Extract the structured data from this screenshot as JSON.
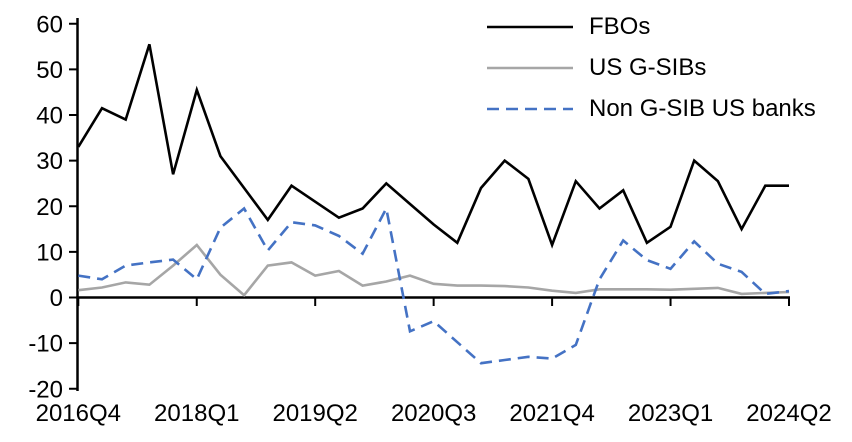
{
  "chart_data": {
    "type": "line",
    "title": "",
    "xlabel": "",
    "ylabel": "",
    "grid": false,
    "legend_position": "top-right",
    "ylim": [
      -20,
      60
    ],
    "y_ticks": [
      60,
      50,
      40,
      30,
      20,
      10,
      0,
      -10,
      -20
    ],
    "x_tick_labels": [
      "2016Q4",
      "2018Q1",
      "2019Q2",
      "2020Q3",
      "2021Q4",
      "2023Q1",
      "2024Q2"
    ],
    "x_tick_indices": [
      0,
      5,
      10,
      15,
      20,
      25,
      30
    ],
    "categories": [
      "2016Q4",
      "2017Q1",
      "2017Q2",
      "2017Q3",
      "2017Q4",
      "2018Q1",
      "2018Q2",
      "2018Q3",
      "2018Q4",
      "2019Q1",
      "2019Q2",
      "2019Q3",
      "2019Q4",
      "2020Q1",
      "2020Q2",
      "2020Q3",
      "2020Q4",
      "2021Q1",
      "2021Q2",
      "2021Q3",
      "2021Q4",
      "2022Q1",
      "2022Q2",
      "2022Q3",
      "2022Q4",
      "2023Q1",
      "2023Q2",
      "2023Q3",
      "2023Q4",
      "2024Q1",
      "2024Q2"
    ],
    "series": [
      {
        "name": "FBOs",
        "color": "#000000",
        "style": "solid",
        "values": [
          33,
          41.5,
          39,
          55.5,
          27,
          45.5,
          31,
          24,
          17,
          24.5,
          21,
          17.5,
          19.5,
          25,
          20.5,
          16,
          12,
          24,
          30,
          26,
          11.5,
          25.5,
          19.5,
          23.5,
          12,
          15.5,
          30,
          25.5,
          15,
          24.5,
          24.5
        ]
      },
      {
        "name": "US G-SIBs",
        "color": "#A6A6A6",
        "style": "solid",
        "values": [
          1.6,
          2.2,
          3.3,
          2.8,
          7,
          11.5,
          5,
          0.5,
          7,
          7.7,
          4.8,
          5.8,
          2.6,
          3.5,
          4.8,
          3,
          2.6,
          2.6,
          2.5,
          2.2,
          1.5,
          1,
          1.8,
          1.8,
          1.8,
          1.7,
          1.9,
          2.1,
          0.8,
          1,
          1.2
        ]
      },
      {
        "name": "Non G-SIB US banks",
        "color": "#4472C4",
        "style": "dashed",
        "values": [
          4.8,
          4,
          7,
          7.7,
          8.3,
          4,
          15.3,
          19.5,
          10.3,
          16.5,
          15.8,
          13.5,
          9.6,
          19.5,
          -7.4,
          -5.2,
          -9.8,
          -14.4,
          -13.7,
          -13,
          -13.4,
          -10.4,
          4,
          12.5,
          8.2,
          6.3,
          12.3,
          7.4,
          5.6,
          0.8,
          1.4
        ]
      }
    ]
  }
}
